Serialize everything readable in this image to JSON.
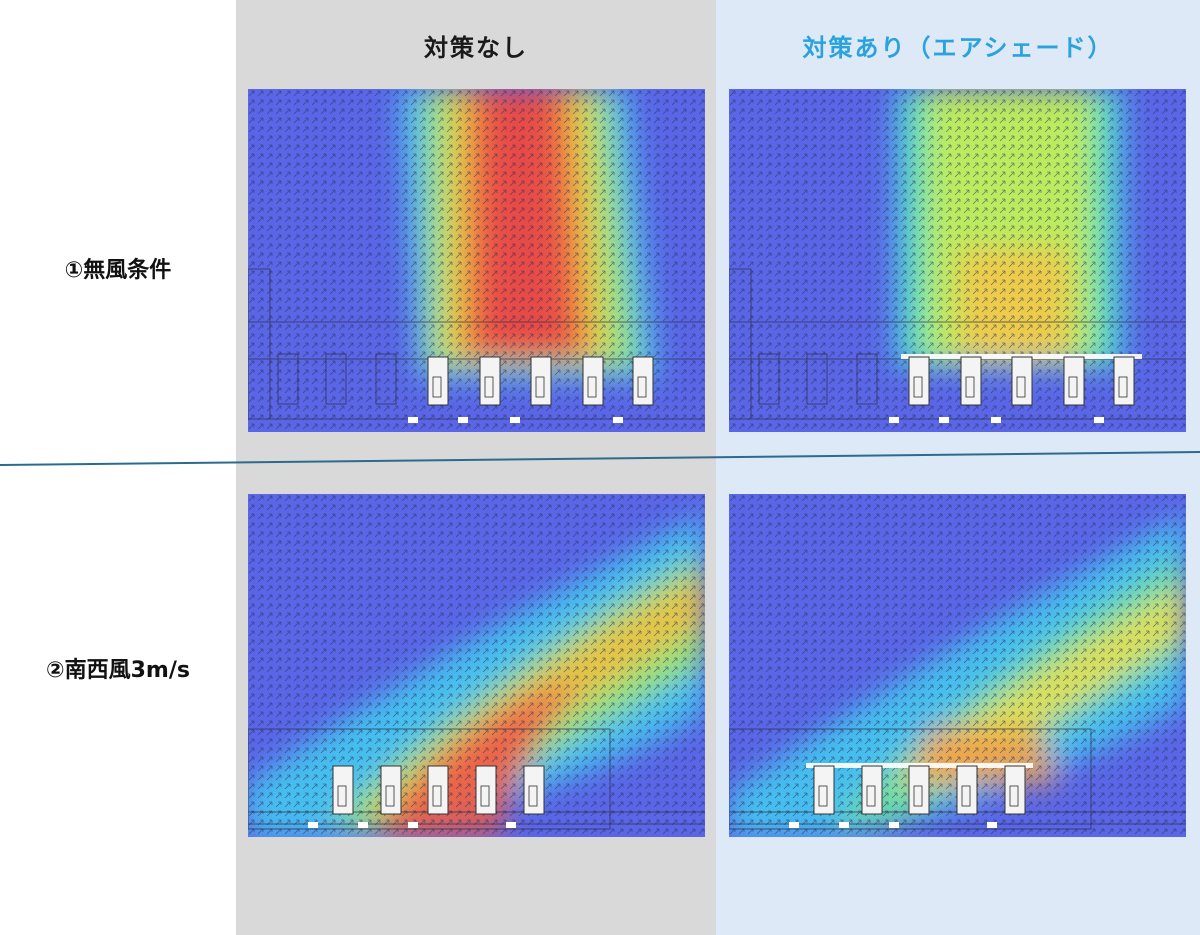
{
  "columns": {
    "none": {
      "label": "対策なし",
      "color": "#1a1a1a"
    },
    "shade": {
      "label": "対策あり（エアシェード）",
      "color": "#2aa3dc"
    }
  },
  "rows": [
    {
      "label": "①無風条件",
      "condition": "no-wind"
    },
    {
      "label": "②南西風3m/s",
      "condition": "southwest-wind"
    }
  ],
  "colors": {
    "background_none": "#d9d9d9",
    "background_shade": "#dde9f6",
    "divider": "#2c6b8e"
  }
}
